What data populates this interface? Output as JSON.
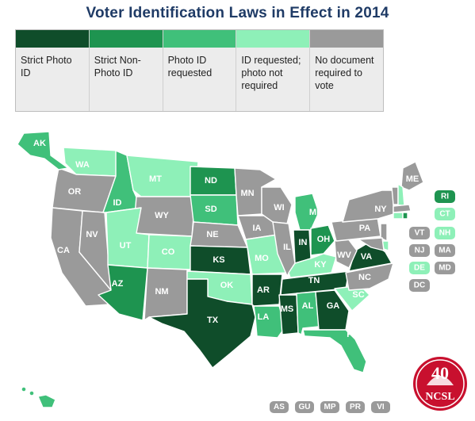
{
  "title": "Voter Identification Laws in Effect in 2014",
  "colors": {
    "strict_photo": "#0f4d2a",
    "strict_nonphoto": "#1e9450",
    "photo_requested": "#40c07a",
    "id_requested": "#8ef0b8",
    "no_document": "#9a9a9a"
  },
  "legend": [
    {
      "category": "strict_photo",
      "label": "Strict Photo ID"
    },
    {
      "category": "strict_nonphoto",
      "label": "Strict Non-Photo ID"
    },
    {
      "category": "photo_requested",
      "label": "Photo ID requested"
    },
    {
      "category": "id_requested",
      "label": "ID requested; photo not required"
    },
    {
      "category": "no_document",
      "label": "No document required to vote"
    }
  ],
  "states": {
    "AK": "photo_requested",
    "HI": "photo_requested",
    "WA": "id_requested",
    "OR": "no_document",
    "CA": "no_document",
    "NV": "no_document",
    "ID": "photo_requested",
    "MT": "id_requested",
    "WY": "no_document",
    "UT": "id_requested",
    "CO": "id_requested",
    "AZ": "strict_nonphoto",
    "NM": "no_document",
    "ND": "strict_nonphoto",
    "SD": "photo_requested",
    "NE": "no_document",
    "KS": "strict_photo",
    "OK": "id_requested",
    "TX": "strict_photo",
    "MN": "no_document",
    "IA": "no_document",
    "MO": "id_requested",
    "AR": "strict_photo",
    "LA": "photo_requested",
    "WI": "no_document",
    "IL": "no_document",
    "MI": "photo_requested",
    "IN": "strict_photo",
    "OH": "strict_nonphoto",
    "KY": "id_requested",
    "TN": "strict_photo",
    "MS": "strict_photo",
    "AL": "photo_requested",
    "GA": "strict_photo",
    "FL": "photo_requested",
    "SC": "id_requested",
    "NC": "no_document",
    "VA": "strict_photo",
    "WV": "no_document",
    "PA": "no_document",
    "NY": "no_document",
    "ME": "no_document",
    "VT": "no_document",
    "NH": "id_requested",
    "MA": "no_document",
    "RI": "strict_nonphoto",
    "CT": "id_requested",
    "NJ": "no_document",
    "DE": "id_requested",
    "MD": "no_document",
    "DC": "no_document"
  },
  "territories": [
    "AS",
    "GU",
    "MP",
    "PR",
    "VI"
  ],
  "logo": {
    "number": "40",
    "text": "NCSL"
  }
}
